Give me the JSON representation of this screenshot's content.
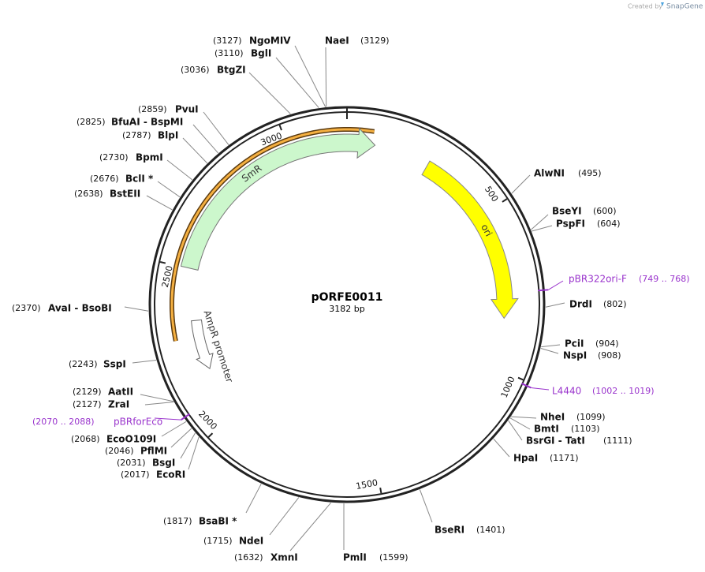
{
  "header": {
    "created_by": "Created by",
    "brand": "SnapGene"
  },
  "plasmid": {
    "name": "pORFE0011",
    "length": {
      "value": 3182,
      "label": "3182 bp"
    }
  },
  "ring_ticks": [
    500,
    1000,
    1500,
    2000,
    2500,
    3000
  ],
  "sites": [
    {
      "name": "NgoMIV",
      "position": {
        "value": 3127,
        "label": "(3127)"
      }
    },
    {
      "name": "BglI",
      "position": {
        "value": 3110,
        "label": "(3110)"
      }
    },
    {
      "name": "BtgZI",
      "position": {
        "value": 3036,
        "label": "(3036)"
      }
    },
    {
      "name": "NaeI",
      "position": {
        "value": 3129,
        "label": "(3129)"
      }
    },
    {
      "name": "PvuI",
      "position": {
        "value": 2859,
        "label": "(2859)"
      }
    },
    {
      "name": "BfuAI - BspMI",
      "position": {
        "value": 2825,
        "label": "(2825)"
      }
    },
    {
      "name": "BlpI",
      "position": {
        "value": 2787,
        "label": "(2787)"
      }
    },
    {
      "name": "BpmI",
      "position": {
        "value": 2730,
        "label": "(2730)"
      }
    },
    {
      "name": "BclI *",
      "position": {
        "value": 2676,
        "label": "(2676)"
      }
    },
    {
      "name": "BstEII",
      "position": {
        "value": 2638,
        "label": "(2638)"
      }
    },
    {
      "name": "AvaI - BsoBI",
      "position": {
        "value": 2370,
        "label": "(2370)"
      }
    },
    {
      "name": "SspI",
      "position": {
        "value": 2243,
        "label": "(2243)"
      }
    },
    {
      "name": "AatII",
      "position": {
        "value": 2129,
        "label": "(2129)"
      }
    },
    {
      "name": "ZraI",
      "position": {
        "value": 2127,
        "label": "(2127)"
      }
    },
    {
      "name": "EcoO109I",
      "position": {
        "value": 2068,
        "label": "(2068)"
      }
    },
    {
      "name": "PflMI",
      "position": {
        "value": 2046,
        "label": "(2046)"
      }
    },
    {
      "name": "BsgI",
      "position": {
        "value": 2031,
        "label": "(2031)"
      }
    },
    {
      "name": "EcoRI",
      "position": {
        "value": 2017,
        "label": "(2017)"
      }
    },
    {
      "name": "BsaBI *",
      "position": {
        "value": 1817,
        "label": "(1817)"
      }
    },
    {
      "name": "NdeI",
      "position": {
        "value": 1715,
        "label": "(1715)"
      }
    },
    {
      "name": "XmnI",
      "position": {
        "value": 1632,
        "label": "(1632)"
      }
    },
    {
      "name": "PmlI",
      "position": {
        "value": 1599,
        "label": "(1599)"
      }
    },
    {
      "name": "BseRI",
      "position": {
        "value": 1401,
        "label": "(1401)"
      }
    },
    {
      "name": "AlwNI",
      "position": {
        "value": 495,
        "label": "(495)"
      }
    },
    {
      "name": "BseYI",
      "position": {
        "value": 600,
        "label": "(600)"
      }
    },
    {
      "name": "PspFI",
      "position": {
        "value": 604,
        "label": "(604)"
      }
    },
    {
      "name": "DrdI",
      "position": {
        "value": 802,
        "label": "(802)"
      }
    },
    {
      "name": "PciI",
      "position": {
        "value": 904,
        "label": "(904)"
      }
    },
    {
      "name": "NspI",
      "position": {
        "value": 908,
        "label": "(908)"
      }
    },
    {
      "name": "NheI",
      "position": {
        "value": 1099,
        "label": "(1099)"
      }
    },
    {
      "name": "BmtI",
      "position": {
        "value": 1103,
        "label": "(1103)"
      }
    },
    {
      "name": "BsrGI - TatI",
      "position": {
        "value": 1111,
        "label": "(1111)"
      }
    },
    {
      "name": "HpaI",
      "position": {
        "value": 1171,
        "label": "(1171)"
      }
    }
  ],
  "primers": [
    {
      "name": "pBR322ori-F",
      "range": {
        "start": 749,
        "end": 768,
        "label": "(749 .. 768)"
      }
    },
    {
      "name": "L4440",
      "range": {
        "start": 1002,
        "end": 1019,
        "label": "(1002 .. 1019)"
      }
    },
    {
      "name": "pBRforEco",
      "range": {
        "start": 2070,
        "end": 2088,
        "label": "(2070 .. 2088)"
      }
    }
  ],
  "features": [
    {
      "name": "SmR"
    },
    {
      "name": "ori"
    },
    {
      "name": "AmpR promoter"
    }
  ]
}
